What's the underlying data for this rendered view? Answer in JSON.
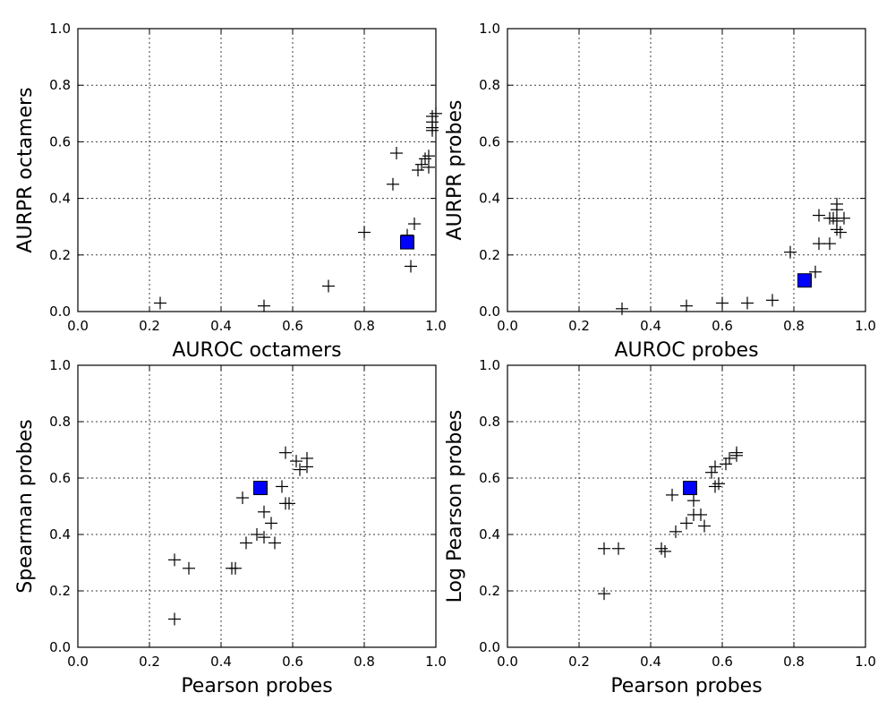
{
  "chart_data": [
    {
      "type": "scatter",
      "xlabel": "AUROC octamers",
      "ylabel": "AURPR octamers",
      "xlim": [
        0.0,
        1.0
      ],
      "ylim": [
        0.0,
        1.0
      ],
      "xticks": [
        "0.0",
        "0.2",
        "0.4",
        "0.6",
        "0.8",
        "1.0"
      ],
      "yticks": [
        "0.0",
        "0.2",
        "0.4",
        "0.6",
        "0.8",
        "1.0"
      ],
      "grid": true,
      "series": [
        {
          "marker": "plus",
          "color": "#000000",
          "points": [
            [
              0.23,
              0.03
            ],
            [
              0.52,
              0.02
            ],
            [
              0.7,
              0.09
            ],
            [
              0.8,
              0.28
            ],
            [
              0.88,
              0.45
            ],
            [
              0.89,
              0.56
            ],
            [
              0.92,
              0.27
            ],
            [
              0.93,
              0.16
            ],
            [
              0.94,
              0.31
            ],
            [
              0.95,
              0.5
            ],
            [
              0.96,
              0.52
            ],
            [
              0.97,
              0.54
            ],
            [
              0.98,
              0.51
            ],
            [
              0.98,
              0.55
            ],
            [
              0.99,
              0.65
            ],
            [
              0.99,
              0.67
            ],
            [
              0.99,
              0.69
            ],
            [
              1.0,
              0.7
            ],
            [
              0.99,
              0.64
            ]
          ]
        },
        {
          "marker": "square",
          "color": "#0000ff",
          "points": [
            [
              0.92,
              0.245
            ]
          ]
        }
      ]
    },
    {
      "type": "scatter",
      "xlabel": "AUROC probes",
      "ylabel": "AURPR probes",
      "xlim": [
        0.0,
        1.0
      ],
      "ylim": [
        0.0,
        1.0
      ],
      "xticks": [
        "0.0",
        "0.2",
        "0.4",
        "0.6",
        "0.8",
        "1.0"
      ],
      "yticks": [
        "0.0",
        "0.2",
        "0.4",
        "0.6",
        "0.8",
        "1.0"
      ],
      "grid": true,
      "series": [
        {
          "marker": "plus",
          "color": "#000000",
          "points": [
            [
              0.32,
              0.01
            ],
            [
              0.5,
              0.02
            ],
            [
              0.6,
              0.03
            ],
            [
              0.67,
              0.03
            ],
            [
              0.74,
              0.04
            ],
            [
              0.79,
              0.21
            ],
            [
              0.86,
              0.14
            ],
            [
              0.87,
              0.24
            ],
            [
              0.87,
              0.34
            ],
            [
              0.9,
              0.24
            ],
            [
              0.91,
              0.33
            ],
            [
              0.92,
              0.29
            ],
            [
              0.92,
              0.32
            ],
            [
              0.92,
              0.36
            ],
            [
              0.92,
              0.38
            ],
            [
              0.94,
              0.33
            ],
            [
              0.93,
              0.28
            ],
            [
              0.9,
              0.33
            ]
          ]
        },
        {
          "marker": "square",
          "color": "#0000ff",
          "points": [
            [
              0.83,
              0.11
            ]
          ]
        }
      ]
    },
    {
      "type": "scatter",
      "xlabel": "Pearson probes",
      "ylabel": "Spearman probes",
      "xlim": [
        0.0,
        1.0
      ],
      "ylim": [
        0.0,
        1.0
      ],
      "xticks": [
        "0.0",
        "0.2",
        "0.4",
        "0.6",
        "0.8",
        "1.0"
      ],
      "yticks": [
        "0.0",
        "0.2",
        "0.4",
        "0.6",
        "0.8",
        "1.0"
      ],
      "grid": true,
      "series": [
        {
          "marker": "plus",
          "color": "#000000",
          "points": [
            [
              0.27,
              0.1
            ],
            [
              0.27,
              0.31
            ],
            [
              0.31,
              0.28
            ],
            [
              0.43,
              0.28
            ],
            [
              0.44,
              0.28
            ],
            [
              0.46,
              0.53
            ],
            [
              0.47,
              0.37
            ],
            [
              0.5,
              0.4
            ],
            [
              0.52,
              0.39
            ],
            [
              0.52,
              0.48
            ],
            [
              0.54,
              0.44
            ],
            [
              0.55,
              0.37
            ],
            [
              0.57,
              0.57
            ],
            [
              0.58,
              0.51
            ],
            [
              0.58,
              0.69
            ],
            [
              0.59,
              0.51
            ],
            [
              0.61,
              0.66
            ],
            [
              0.62,
              0.63
            ],
            [
              0.64,
              0.64
            ],
            [
              0.64,
              0.67
            ]
          ]
        },
        {
          "marker": "square",
          "color": "#0000ff",
          "points": [
            [
              0.51,
              0.565
            ]
          ]
        }
      ]
    },
    {
      "type": "scatter",
      "xlabel": "Pearson probes",
      "ylabel": "Log Pearson probes",
      "xlim": [
        0.0,
        1.0
      ],
      "ylim": [
        0.0,
        1.0
      ],
      "xticks": [
        "0.0",
        "0.2",
        "0.4",
        "0.6",
        "0.8",
        "1.0"
      ],
      "yticks": [
        "0.0",
        "0.2",
        "0.4",
        "0.6",
        "0.8",
        "1.0"
      ],
      "grid": true,
      "series": [
        {
          "marker": "plus",
          "color": "#000000",
          "points": [
            [
              0.27,
              0.19
            ],
            [
              0.27,
              0.35
            ],
            [
              0.31,
              0.35
            ],
            [
              0.43,
              0.35
            ],
            [
              0.44,
              0.34
            ],
            [
              0.46,
              0.54
            ],
            [
              0.47,
              0.41
            ],
            [
              0.5,
              0.44
            ],
            [
              0.52,
              0.47
            ],
            [
              0.52,
              0.52
            ],
            [
              0.54,
              0.47
            ],
            [
              0.55,
              0.43
            ],
            [
              0.57,
              0.62
            ],
            [
              0.58,
              0.57
            ],
            [
              0.58,
              0.64
            ],
            [
              0.59,
              0.58
            ],
            [
              0.61,
              0.65
            ],
            [
              0.62,
              0.67
            ],
            [
              0.64,
              0.68
            ],
            [
              0.64,
              0.69
            ]
          ]
        },
        {
          "marker": "square",
          "color": "#0000ff",
          "points": [
            [
              0.51,
              0.565
            ]
          ]
        }
      ]
    }
  ]
}
